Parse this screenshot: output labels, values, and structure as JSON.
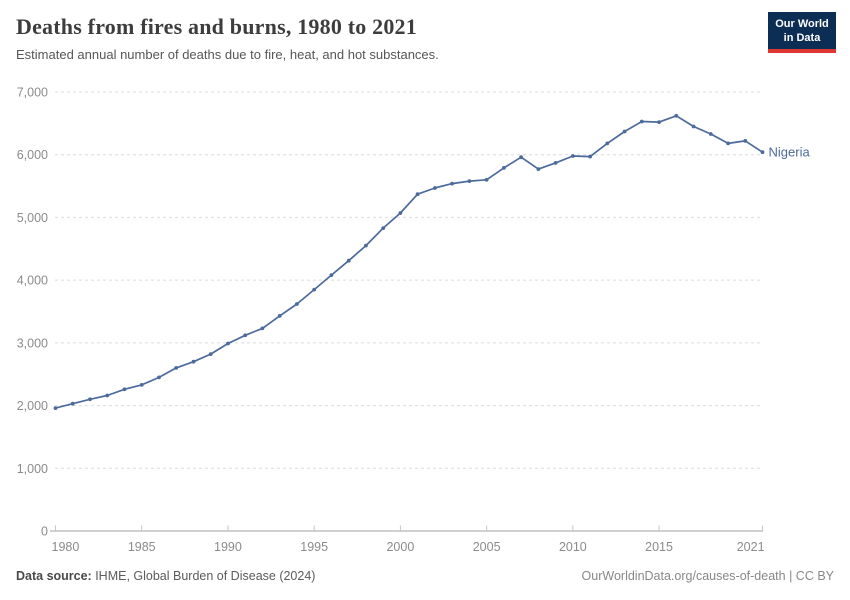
{
  "header": {
    "title": "Deaths from fires and burns, 1980 to 2021",
    "subtitle": "Estimated annual number of deaths due to fire, heat, and hot substances.",
    "logo": {
      "line1": "Our World",
      "line2": "in Data"
    }
  },
  "chart_data": {
    "type": "line",
    "title": "Deaths from fires and burns, 1980 to 2021",
    "subtitle": "Estimated annual number of deaths due to fire, heat, and hot substances.",
    "xlabel": "",
    "ylabel": "",
    "xlim": [
      1980,
      2021
    ],
    "ylim": [
      0,
      7000
    ],
    "xticks": [
      1980,
      1985,
      1990,
      1995,
      2000,
      2005,
      2010,
      2015,
      2021
    ],
    "yticks": [
      0,
      1000,
      2000,
      3000,
      4000,
      5000,
      6000,
      7000
    ],
    "grid": "horizontal-dashed",
    "legend_position": "end-of-line-label",
    "series": [
      {
        "name": "Nigeria",
        "color": "#4C6A9C",
        "x": [
          1980,
          1981,
          1982,
          1983,
          1984,
          1985,
          1986,
          1987,
          1988,
          1989,
          1990,
          1991,
          1992,
          1993,
          1994,
          1995,
          1996,
          1997,
          1998,
          1999,
          2000,
          2001,
          2002,
          2003,
          2004,
          2005,
          2006,
          2007,
          2008,
          2009,
          2010,
          2011,
          2012,
          2013,
          2014,
          2015,
          2016,
          2017,
          2018,
          2019,
          2020,
          2021
        ],
        "values": [
          1960,
          2030,
          2100,
          2160,
          2260,
          2330,
          2450,
          2600,
          2700,
          2820,
          2990,
          3120,
          3230,
          3430,
          3620,
          3850,
          4080,
          4310,
          4550,
          4830,
          5070,
          5370,
          5470,
          5540,
          5580,
          5600,
          5790,
          5960,
          5770,
          5870,
          5980,
          5970,
          6180,
          6370,
          6530,
          6520,
          6620,
          6450,
          6330,
          6180,
          6220,
          6040
        ]
      }
    ]
  },
  "footer": {
    "source_label": "Data source:",
    "source_value": " IHME, Global Burden of Disease (2024)",
    "link": "OurWorldinData.org/causes-of-death",
    "separator": " | ",
    "license": "CC BY"
  },
  "colors": {
    "line": "#4C6A9C",
    "gridline": "#dcdcdc",
    "axis": "#a1a1a1",
    "tick": "#c6c6c6",
    "tick_label": "#8b8b8b",
    "logo_bg": "#0d2e54",
    "logo_stripe": "#dc3732"
  }
}
